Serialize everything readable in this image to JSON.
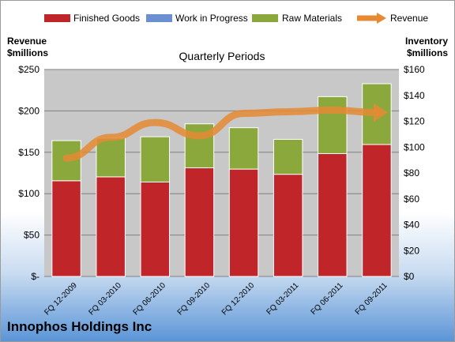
{
  "chart_data": {
    "type": "bar",
    "title": "Quarterly Periods",
    "company": "Innophos Holdings Inc",
    "left_axis_label": [
      "Revenue",
      "$millions"
    ],
    "right_axis_label": [
      "Inventory",
      "$millions"
    ],
    "categories": [
      "FQ 12-2009",
      "FQ 03-2010",
      "FQ 06-2010",
      "FQ 09-2010",
      "FQ 12-2010",
      "FQ 03-2011",
      "FQ 06-2011",
      "FQ 09-2011"
    ],
    "left_axis": {
      "min": 0,
      "max": 250,
      "step": 50,
      "tick_labels": [
        "$-",
        "$50",
        "$100",
        "$150",
        "$200",
        "$250"
      ]
    },
    "right_axis": {
      "min": 0,
      "max": 160,
      "step": 20,
      "tick_labels": [
        "$0",
        "$20",
        "$40",
        "$60",
        "$80",
        "$100",
        "$120",
        "$140",
        "$160"
      ]
    },
    "series": [
      {
        "name": "Finished Goods",
        "kind": "stacked-bar",
        "axis": "right",
        "color": "#c0252a",
        "values": [
          74,
          77,
          73,
          84,
          83,
          79,
          95,
          102
        ]
      },
      {
        "name": "Work in Progress",
        "kind": "stacked-bar",
        "axis": "right",
        "color": "#6b8fd0",
        "values": [
          0,
          0,
          0,
          0,
          0,
          0,
          0,
          0
        ]
      },
      {
        "name": "Raw Materials",
        "kind": "stacked-bar",
        "axis": "right",
        "color": "#8aa83c",
        "values": [
          31,
          30,
          35,
          34,
          32,
          27,
          44,
          47
        ]
      },
      {
        "name": "Revenue",
        "kind": "line",
        "axis": "left",
        "color": "#e58a33",
        "values": [
          143,
          168,
          186,
          170,
          197,
          199,
          201,
          198
        ]
      }
    ],
    "legend_position": "top",
    "grid": true
  }
}
